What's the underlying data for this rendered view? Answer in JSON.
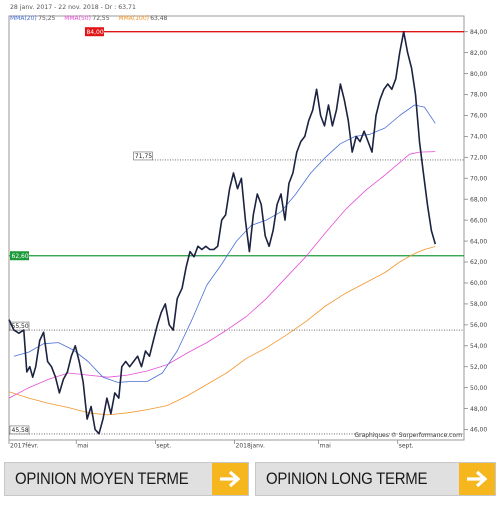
{
  "header": {
    "range_text": "28 janv. 2017 - 22 nov. 2018 - Dr : 63,71",
    "legend": [
      {
        "label": "MMA(20)",
        "value": "75,25",
        "color": "#4a6fd6"
      },
      {
        "label": "MMA(50)",
        "value": "72,55",
        "color": "#e64fd6"
      },
      {
        "label": "MMA(100)",
        "value": "63,48",
        "color": "#f2962b"
      }
    ]
  },
  "watermark": "Graphiques © Surperformance.com",
  "opinions": [
    {
      "label": "OPINION MOYEN TERME"
    },
    {
      "label": "OPINION LONG TERME"
    }
  ],
  "colors": {
    "price": "#1c2340",
    "mma20": "#4a6fd6",
    "mma50": "#e64fd6",
    "mma100": "#f2962b",
    "resistance": "#e01515",
    "support": "#1b9a3a",
    "arrow": "#f5b71d"
  },
  "chart_data": {
    "type": "line",
    "ylim": [
      45,
      85.5
    ],
    "xlim": [
      0,
      460
    ],
    "y_ticks": [
      "46,00",
      "48,00",
      "50,00",
      "52,00",
      "54,00",
      "56,00",
      "58,00",
      "60,00",
      "62,00",
      "64,00",
      "66,00",
      "68,00",
      "70,00",
      "72,00",
      "74,00",
      "76,00",
      "78,00",
      "80,00",
      "82,00",
      "84,00"
    ],
    "x_tick_labels": [
      {
        "label": "2017févr.",
        "x": 0
      },
      {
        "label": "mai",
        "x": 68
      },
      {
        "label": "sept.",
        "x": 148
      },
      {
        "label": "2018janv.",
        "x": 228
      },
      {
        "label": "mai",
        "x": 313
      },
      {
        "label": "sept.",
        "x": 393
      }
    ],
    "levels": [
      {
        "label": "84,00",
        "value": 84.0,
        "style": "resistance"
      },
      {
        "label": "62,60",
        "value": 62.6,
        "style": "support"
      },
      {
        "label": "71,75",
        "value": 71.75,
        "style": "dotted"
      },
      {
        "label": "55,50",
        "value": 55.5,
        "style": "dotted"
      },
      {
        "label": "45,58",
        "value": 45.58,
        "style": "dotted"
      }
    ],
    "series": [
      {
        "key": "price",
        "values": [
          [
            0,
            56.5
          ],
          [
            5,
            55.5
          ],
          [
            10,
            55.2
          ],
          [
            15,
            55.5
          ],
          [
            18,
            51.5
          ],
          [
            21,
            52.0
          ],
          [
            24,
            51.0
          ],
          [
            27,
            52.0
          ],
          [
            31,
            54.5
          ],
          [
            35,
            55.3
          ],
          [
            39,
            52.5
          ],
          [
            43,
            52.0
          ],
          [
            47,
            51.0
          ],
          [
            51,
            49.5
          ],
          [
            55,
            50.8
          ],
          [
            59,
            51.5
          ],
          [
            63,
            53.0
          ],
          [
            67,
            54.0
          ],
          [
            71,
            52.5
          ],
          [
            75,
            50.5
          ],
          [
            79,
            47.0
          ],
          [
            83,
            48.2
          ],
          [
            87,
            46.0
          ],
          [
            91,
            45.6
          ],
          [
            95,
            47.0
          ],
          [
            99,
            49.0
          ],
          [
            103,
            47.5
          ],
          [
            107,
            49.5
          ],
          [
            111,
            49.0
          ],
          [
            114,
            52.0
          ],
          [
            118,
            52.5
          ],
          [
            122,
            52.0
          ],
          [
            126,
            52.5
          ],
          [
            130,
            53.0
          ],
          [
            134,
            52.0
          ],
          [
            138,
            53.5
          ],
          [
            142,
            53.0
          ],
          [
            146,
            54.5
          ],
          [
            150,
            56.0
          ],
          [
            154,
            57.2
          ],
          [
            158,
            58.0
          ],
          [
            162,
            56.0
          ],
          [
            166,
            55.5
          ],
          [
            170,
            58.5
          ],
          [
            175,
            59.5
          ],
          [
            179,
            61.5
          ],
          [
            183,
            63.0
          ],
          [
            187,
            62.5
          ],
          [
            191,
            63.5
          ],
          [
            195,
            63.2
          ],
          [
            199,
            63.5
          ],
          [
            203,
            63.2
          ],
          [
            207,
            63.2
          ],
          [
            211,
            63.5
          ],
          [
            215,
            66.0
          ],
          [
            219,
            66.5
          ],
          [
            223,
            69.0
          ],
          [
            227,
            70.5
          ],
          [
            231,
            69.0
          ],
          [
            235,
            70.0
          ],
          [
            239,
            66.0
          ],
          [
            243,
            63.0
          ],
          [
            247,
            66.5
          ],
          [
            251,
            68.5
          ],
          [
            255,
            67.5
          ],
          [
            259,
            64.5
          ],
          [
            263,
            63.5
          ],
          [
            267,
            65.0
          ],
          [
            271,
            67.5
          ],
          [
            275,
            68.5
          ],
          [
            279,
            66.0
          ],
          [
            283,
            69.5
          ],
          [
            287,
            70.5
          ],
          [
            291,
            72.5
          ],
          [
            295,
            73.5
          ],
          [
            299,
            74.0
          ],
          [
            303,
            75.5
          ],
          [
            307,
            76.5
          ],
          [
            311,
            78.5
          ],
          [
            315,
            76.0
          ],
          [
            319,
            75.0
          ],
          [
            323,
            77.0
          ],
          [
            327,
            75.0
          ],
          [
            331,
            76.5
          ],
          [
            335,
            79.0
          ],
          [
            339,
            77.5
          ],
          [
            343,
            75.5
          ],
          [
            347,
            72.5
          ],
          [
            351,
            74.0
          ],
          [
            355,
            73.5
          ],
          [
            359,
            74.5
          ],
          [
            363,
            73.5
          ],
          [
            367,
            72.5
          ],
          [
            371,
            76.0
          ],
          [
            375,
            77.5
          ],
          [
            379,
            78.5
          ],
          [
            383,
            79.0
          ],
          [
            387,
            78.5
          ],
          [
            391,
            79.5
          ],
          [
            395,
            82.0
          ],
          [
            399,
            84.0
          ],
          [
            403,
            82.0
          ],
          [
            407,
            80.5
          ],
          [
            411,
            78.0
          ],
          [
            415,
            73.5
          ],
          [
            419,
            70.5
          ],
          [
            423,
            67.5
          ],
          [
            427,
            65.0
          ],
          [
            431,
            63.71
          ]
        ]
      },
      {
        "key": "mma20",
        "values": [
          [
            5,
            53.0
          ],
          [
            20,
            53.4
          ],
          [
            35,
            54.2
          ],
          [
            50,
            54.3
          ],
          [
            65,
            53.6
          ],
          [
            80,
            52.5
          ],
          [
            95,
            51.0
          ],
          [
            110,
            50.5
          ],
          [
            125,
            50.6
          ],
          [
            140,
            50.6
          ],
          [
            155,
            51.4
          ],
          [
            170,
            53.5
          ],
          [
            185,
            56.5
          ],
          [
            200,
            59.8
          ],
          [
            215,
            61.8
          ],
          [
            230,
            64.0
          ],
          [
            245,
            65.5
          ],
          [
            260,
            66.0
          ],
          [
            275,
            66.8
          ],
          [
            290,
            68.5
          ],
          [
            305,
            70.5
          ],
          [
            320,
            72.0
          ],
          [
            335,
            73.3
          ],
          [
            350,
            74.0
          ],
          [
            365,
            74.2
          ],
          [
            380,
            74.8
          ],
          [
            395,
            76.0
          ],
          [
            410,
            77.0
          ],
          [
            420,
            76.8
          ],
          [
            431,
            75.25
          ]
        ]
      },
      {
        "key": "mma50",
        "values": [
          [
            0,
            49.0
          ],
          [
            20,
            50.0
          ],
          [
            40,
            50.8
          ],
          [
            60,
            51.4
          ],
          [
            80,
            51.2
          ],
          [
            100,
            51.0
          ],
          [
            120,
            51.2
          ],
          [
            140,
            51.6
          ],
          [
            160,
            52.2
          ],
          [
            180,
            53.3
          ],
          [
            200,
            54.3
          ],
          [
            220,
            55.5
          ],
          [
            240,
            56.8
          ],
          [
            260,
            58.5
          ],
          [
            280,
            60.5
          ],
          [
            300,
            62.5
          ],
          [
            320,
            64.8
          ],
          [
            340,
            67.0
          ],
          [
            360,
            68.8
          ],
          [
            380,
            70.3
          ],
          [
            395,
            71.5
          ],
          [
            405,
            72.3
          ],
          [
            415,
            72.5
          ],
          [
            431,
            72.55
          ]
        ]
      },
      {
        "key": "mma100",
        "values": [
          [
            0,
            49.6
          ],
          [
            20,
            49.0
          ],
          [
            40,
            48.5
          ],
          [
            60,
            48.1
          ],
          [
            80,
            47.6
          ],
          [
            100,
            47.4
          ],
          [
            120,
            47.6
          ],
          [
            140,
            47.9
          ],
          [
            160,
            48.3
          ],
          [
            180,
            49.2
          ],
          [
            200,
            50.3
          ],
          [
            220,
            51.4
          ],
          [
            240,
            52.8
          ],
          [
            260,
            53.8
          ],
          [
            280,
            55.0
          ],
          [
            300,
            56.3
          ],
          [
            320,
            57.8
          ],
          [
            340,
            59.0
          ],
          [
            360,
            60.0
          ],
          [
            380,
            61.0
          ],
          [
            395,
            62.0
          ],
          [
            410,
            62.8
          ],
          [
            420,
            63.2
          ],
          [
            431,
            63.48
          ]
        ]
      }
    ]
  }
}
